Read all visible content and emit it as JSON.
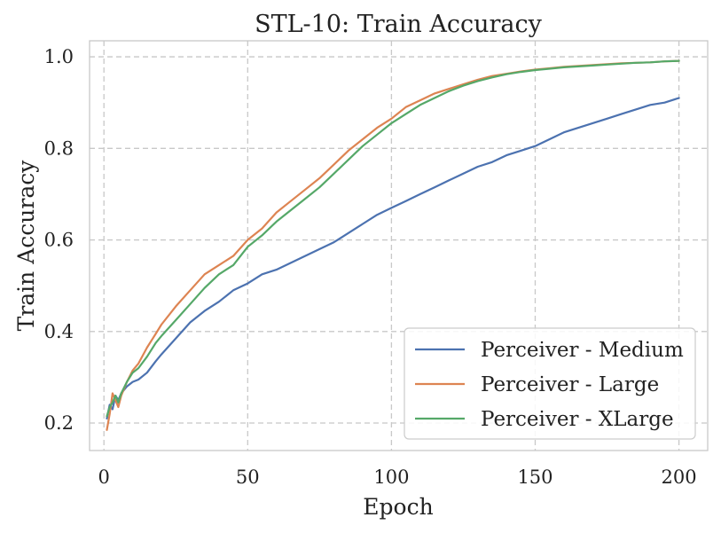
{
  "chart_data": {
    "type": "line",
    "title": "STL-10: Train Accuracy",
    "xlabel": "Epoch",
    "ylabel": "Train Accuracy",
    "xlim": [
      -5,
      210
    ],
    "ylim": [
      0.14,
      1.035
    ],
    "xticks": [
      0,
      50,
      100,
      150,
      200
    ],
    "yticks": [
      0.2,
      0.4,
      0.6,
      0.8,
      1.0
    ],
    "xtick_labels": [
      "0",
      "50",
      "100",
      "150",
      "200"
    ],
    "ytick_labels": [
      "0.2",
      "0.4",
      "0.6",
      "0.8",
      "1.0"
    ],
    "grid": true,
    "legend_position": "bottom-right",
    "series": [
      {
        "name": "Perceiver - Medium",
        "color": "#4c72b0",
        "x": [
          1,
          2,
          3,
          4,
          5,
          6,
          8,
          10,
          12,
          15,
          18,
          20,
          25,
          30,
          35,
          40,
          45,
          50,
          55,
          60,
          65,
          70,
          75,
          80,
          85,
          90,
          95,
          100,
          105,
          110,
          115,
          120,
          125,
          130,
          135,
          140,
          145,
          150,
          155,
          160,
          165,
          170,
          175,
          180,
          185,
          190,
          195,
          200
        ],
        "y": [
          0.21,
          0.24,
          0.23,
          0.26,
          0.25,
          0.265,
          0.28,
          0.29,
          0.295,
          0.31,
          0.335,
          0.35,
          0.385,
          0.42,
          0.445,
          0.465,
          0.49,
          0.505,
          0.525,
          0.535,
          0.55,
          0.565,
          0.58,
          0.595,
          0.615,
          0.635,
          0.655,
          0.67,
          0.685,
          0.7,
          0.715,
          0.73,
          0.745,
          0.76,
          0.77,
          0.785,
          0.795,
          0.805,
          0.82,
          0.835,
          0.845,
          0.855,
          0.865,
          0.875,
          0.885,
          0.895,
          0.9,
          0.91
        ]
      },
      {
        "name": "Perceiver - Large",
        "color": "#dd8452",
        "x": [
          1,
          2,
          3,
          4,
          5,
          6,
          8,
          10,
          12,
          15,
          18,
          20,
          25,
          30,
          35,
          40,
          45,
          50,
          55,
          60,
          65,
          70,
          75,
          80,
          85,
          90,
          95,
          100,
          105,
          110,
          115,
          120,
          125,
          130,
          135,
          140,
          145,
          150,
          155,
          160,
          165,
          170,
          175,
          180,
          185,
          190,
          195,
          200
        ],
        "y": [
          0.185,
          0.22,
          0.265,
          0.25,
          0.235,
          0.26,
          0.29,
          0.315,
          0.33,
          0.365,
          0.395,
          0.415,
          0.455,
          0.49,
          0.525,
          0.545,
          0.565,
          0.6,
          0.625,
          0.66,
          0.685,
          0.71,
          0.735,
          0.765,
          0.795,
          0.82,
          0.845,
          0.865,
          0.89,
          0.905,
          0.92,
          0.93,
          0.94,
          0.95,
          0.958,
          0.963,
          0.968,
          0.972,
          0.975,
          0.978,
          0.98,
          0.982,
          0.984,
          0.986,
          0.987,
          0.988,
          0.99,
          0.991
        ]
      },
      {
        "name": "Perceiver - XLarge",
        "color": "#55a868",
        "x": [
          1,
          2,
          3,
          4,
          5,
          6,
          8,
          10,
          12,
          15,
          18,
          20,
          25,
          30,
          35,
          40,
          45,
          50,
          55,
          60,
          65,
          70,
          75,
          80,
          85,
          90,
          95,
          100,
          105,
          110,
          115,
          120,
          125,
          130,
          135,
          140,
          145,
          150,
          155,
          160,
          165,
          170,
          175,
          180,
          185,
          190,
          195,
          200
        ],
        "y": [
          0.215,
          0.235,
          0.245,
          0.26,
          0.245,
          0.265,
          0.29,
          0.31,
          0.32,
          0.345,
          0.375,
          0.39,
          0.425,
          0.46,
          0.495,
          0.525,
          0.545,
          0.585,
          0.61,
          0.64,
          0.665,
          0.69,
          0.715,
          0.745,
          0.775,
          0.805,
          0.83,
          0.855,
          0.875,
          0.895,
          0.91,
          0.925,
          0.937,
          0.947,
          0.955,
          0.962,
          0.967,
          0.971,
          0.974,
          0.977,
          0.979,
          0.981,
          0.983,
          0.985,
          0.987,
          0.988,
          0.99,
          0.991
        ]
      }
    ]
  }
}
